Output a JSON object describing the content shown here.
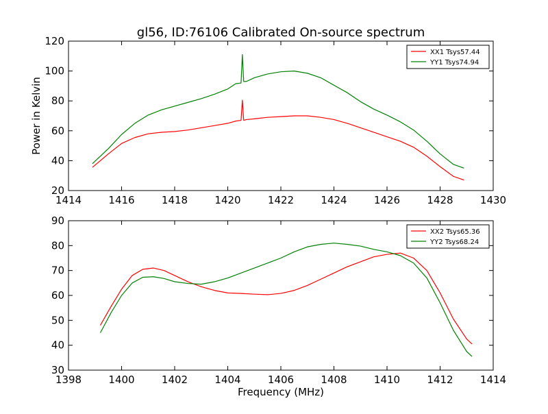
{
  "title": "gl56, ID:76106 Calibrated On-source spectrum",
  "chart_data": [
    {
      "type": "line",
      "ylabel": "Power in Kelvin",
      "xlabel": "",
      "xlim": [
        1414,
        1430
      ],
      "ylim": [
        20,
        120
      ],
      "xticks": [
        1414,
        1416,
        1418,
        1420,
        1422,
        1424,
        1426,
        1428,
        1430
      ],
      "yticks": [
        20,
        40,
        60,
        80,
        100,
        120
      ],
      "grid": false,
      "legend_position": "top-right",
      "series": [
        {
          "name": "XX1 Tsys57.44",
          "color": "#ff0000",
          "x": [
            1414.9,
            1415.5,
            1416.0,
            1416.5,
            1417.0,
            1417.5,
            1418.0,
            1418.5,
            1419.0,
            1419.5,
            1420.0,
            1420.3,
            1420.5,
            1420.55,
            1420.6,
            1420.7,
            1421.0,
            1421.5,
            1422.0,
            1422.5,
            1423.0,
            1423.5,
            1424.0,
            1424.5,
            1425.0,
            1425.5,
            1426.0,
            1426.5,
            1427.0,
            1427.5,
            1428.0,
            1428.5,
            1428.9
          ],
          "y": [
            35.5,
            44.5,
            51.5,
            55.5,
            58.0,
            59.0,
            59.5,
            60.5,
            62.0,
            63.5,
            65.0,
            66.5,
            67.0,
            80.5,
            67.0,
            67.5,
            68.0,
            69.0,
            69.5,
            70.0,
            70.0,
            69.0,
            67.5,
            65.0,
            62.0,
            59.0,
            56.0,
            53.0,
            49.0,
            43.0,
            36.0,
            29.5,
            27.0
          ]
        },
        {
          "name": "YY1 Tsys74.94",
          "color": "#008000",
          "x": [
            1414.9,
            1415.5,
            1416.0,
            1416.5,
            1417.0,
            1417.5,
            1418.0,
            1418.5,
            1419.0,
            1419.5,
            1420.0,
            1420.3,
            1420.5,
            1420.55,
            1420.6,
            1420.7,
            1421.0,
            1421.5,
            1422.0,
            1422.5,
            1423.0,
            1423.5,
            1424.0,
            1424.5,
            1425.0,
            1425.5,
            1426.0,
            1426.5,
            1427.0,
            1427.5,
            1428.0,
            1428.5,
            1428.9
          ],
          "y": [
            38.0,
            48.0,
            57.5,
            65.0,
            70.5,
            74.0,
            76.5,
            79.0,
            81.5,
            84.5,
            88.0,
            91.5,
            92.0,
            111.0,
            93.0,
            93.0,
            95.5,
            98.0,
            99.5,
            100.0,
            98.5,
            95.5,
            90.5,
            85.5,
            79.5,
            74.5,
            70.5,
            66.0,
            60.5,
            53.0,
            44.5,
            37.5,
            35.0
          ]
        }
      ]
    },
    {
      "type": "line",
      "ylabel": "",
      "xlabel": "Frequency (MHz)",
      "xlim": [
        1398,
        1414
      ],
      "ylim": [
        30,
        90
      ],
      "xticks": [
        1398,
        1400,
        1402,
        1404,
        1406,
        1408,
        1410,
        1412,
        1414
      ],
      "yticks": [
        30,
        40,
        50,
        60,
        70,
        80,
        90
      ],
      "grid": false,
      "legend_position": "top-right",
      "series": [
        {
          "name": "XX2 Tsys65.36",
          "color": "#ff0000",
          "x": [
            1399.2,
            1399.6,
            1400.0,
            1400.4,
            1400.8,
            1401.2,
            1401.6,
            1402.0,
            1402.5,
            1403.0,
            1403.5,
            1404.0,
            1404.5,
            1405.0,
            1405.5,
            1406.0,
            1406.5,
            1407.0,
            1407.5,
            1408.0,
            1408.5,
            1409.0,
            1409.5,
            1410.0,
            1410.5,
            1411.0,
            1411.5,
            1412.0,
            1412.5,
            1413.0,
            1413.2
          ],
          "y": [
            48.0,
            55.5,
            62.5,
            68.0,
            70.5,
            71.0,
            70.0,
            68.0,
            65.5,
            63.5,
            62.0,
            61.0,
            60.8,
            60.5,
            60.3,
            60.8,
            62.0,
            64.0,
            66.5,
            69.0,
            71.5,
            73.5,
            75.5,
            76.5,
            77.0,
            75.0,
            70.0,
            61.0,
            50.5,
            42.5,
            40.5
          ]
        },
        {
          "name": "YY2 Tsys68.24",
          "color": "#008000",
          "x": [
            1399.2,
            1399.6,
            1400.0,
            1400.4,
            1400.8,
            1401.2,
            1401.6,
            1402.0,
            1402.5,
            1403.0,
            1403.5,
            1404.0,
            1404.5,
            1405.0,
            1405.5,
            1406.0,
            1406.5,
            1407.0,
            1407.5,
            1408.0,
            1408.5,
            1409.0,
            1409.5,
            1410.0,
            1410.5,
            1411.0,
            1411.5,
            1412.0,
            1412.5,
            1413.0,
            1413.2
          ],
          "y": [
            45.0,
            53.0,
            60.0,
            65.0,
            67.3,
            67.5,
            66.8,
            65.5,
            64.8,
            64.5,
            65.5,
            67.0,
            69.0,
            71.0,
            73.0,
            75.0,
            77.5,
            79.5,
            80.5,
            81.0,
            80.5,
            79.8,
            78.5,
            77.5,
            76.0,
            73.0,
            67.0,
            57.0,
            46.0,
            37.5,
            35.5
          ]
        }
      ]
    }
  ]
}
